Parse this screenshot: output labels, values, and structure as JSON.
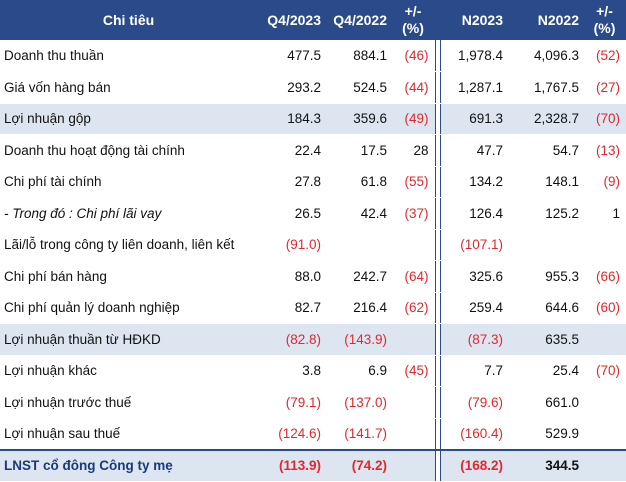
{
  "header": {
    "label": "Chi tiêu",
    "q4_2023": "Q4/2023",
    "q4_2022": "Q4/2022",
    "q_change_line1": "+/-",
    "q_change_line2": "(%)",
    "n2023": "N2023",
    "n2022": "N2022",
    "n_change_line1": "+/-",
    "n_change_line2": "(%)"
  },
  "rows": [
    {
      "label": "Doanh thu thuần",
      "q4_2023": "477.5",
      "q4_2022": "884.1",
      "q_change": "(46)",
      "n2023": "1,978.4",
      "n2022": "4,096.3",
      "n_change": "(52)"
    },
    {
      "label": "Giá vốn hàng bán",
      "q4_2023": "293.2",
      "q4_2022": "524.5",
      "q_change": "(44)",
      "n2023": "1,287.1",
      "n2022": "1,767.5",
      "n_change": "(27)"
    },
    {
      "label": "Lợi nhuận gộp",
      "q4_2023": "184.3",
      "q4_2022": "359.6",
      "q_change": "(49)",
      "n2023": "691.3",
      "n2022": "2,328.7",
      "n_change": "(70)"
    },
    {
      "label": "Doanh thu hoạt động tài chính",
      "q4_2023": "22.4",
      "q4_2022": "17.5",
      "q_change": "28",
      "n2023": "47.7",
      "n2022": "54.7",
      "n_change": "(13)"
    },
    {
      "label": "Chi phí tài chính",
      "q4_2023": "27.8",
      "q4_2022": "61.8",
      "q_change": "(55)",
      "n2023": "134.2",
      "n2022": "148.1",
      "n_change": "(9)"
    },
    {
      "label": "- Trong đó : Chi phí lãi vay",
      "q4_2023": "26.5",
      "q4_2022": "42.4",
      "q_change": "(37)",
      "n2023": "126.4",
      "n2022": "125.2",
      "n_change": "1"
    },
    {
      "label": "Lãi/lỗ trong công ty liên doanh, liên kết",
      "q4_2023": "(91.0)",
      "q4_2022": "",
      "q_change": "",
      "n2023": "(107.1)",
      "n2022": "",
      "n_change": ""
    },
    {
      "label": "Chi phí bán hàng",
      "q4_2023": "88.0",
      "q4_2022": "242.7",
      "q_change": "(64)",
      "n2023": "325.6",
      "n2022": "955.3",
      "n_change": "(66)"
    },
    {
      "label": "Chi phí quản lý doanh nghiệp",
      "q4_2023": "82.7",
      "q4_2022": "216.4",
      "q_change": "(62)",
      "n2023": "259.4",
      "n2022": "644.6",
      "n_change": "(60)"
    },
    {
      "label": "Lợi nhuận thuần từ HĐKD",
      "q4_2023": "(82.8)",
      "q4_2022": "(143.9)",
      "q_change": "",
      "n2023": "(87.3)",
      "n2022": "635.5",
      "n_change": ""
    },
    {
      "label": "Lợi nhuận khác",
      "q4_2023": "3.8",
      "q4_2022": "6.9",
      "q_change": "(45)",
      "n2023": "7.7",
      "n2022": "25.4",
      "n_change": "(70)"
    },
    {
      "label": "Lợi nhuận trước thuế",
      "q4_2023": "(79.1)",
      "q4_2022": "(137.0)",
      "q_change": "",
      "n2023": "(79.6)",
      "n2022": "661.0",
      "n_change": ""
    },
    {
      "label": "Lợi nhuận sau thuế",
      "q4_2023": "(124.6)",
      "q4_2022": "(141.7)",
      "q_change": "",
      "n2023": "(160.4)",
      "n2022": "529.9",
      "n_change": ""
    },
    {
      "label": "LNST cổ đông Công ty mẹ",
      "q4_2023": "(113.9)",
      "q4_2022": "(74.2)",
      "q_change": "",
      "n2023": "(168.2)",
      "n2022": "344.5",
      "n_change": ""
    }
  ],
  "colors": {
    "header_bg": "#2b4a8a",
    "header_text": "#ffffff",
    "highlight_row_bg": "#dde5f1",
    "negative_text": "#e0282e"
  }
}
